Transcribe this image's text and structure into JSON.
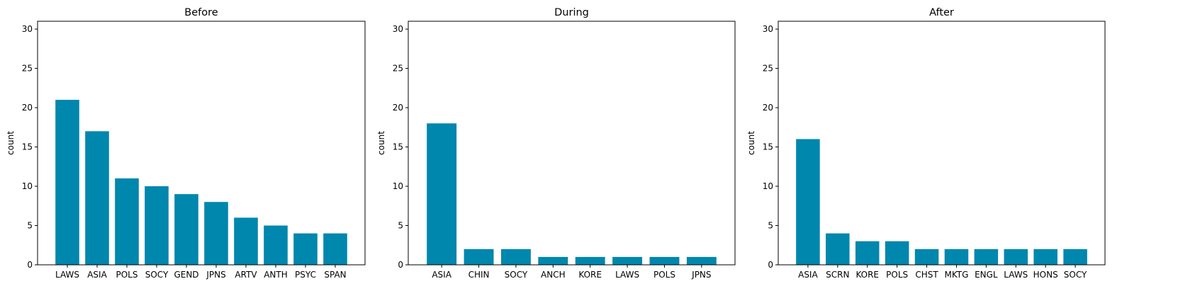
{
  "chart_data": [
    {
      "type": "bar",
      "title": "Before",
      "xlabel": "",
      "ylabel": "count",
      "categories": [
        "LAWS",
        "ASIA",
        "POLS",
        "SOCY",
        "GEND",
        "JPNS",
        "ARTV",
        "ANTH",
        "PSYC",
        "SPAN"
      ],
      "values": [
        21,
        17,
        11,
        10,
        9,
        8,
        6,
        5,
        4,
        4
      ],
      "ylim": [
        0,
        31
      ],
      "yticks": [
        0,
        5,
        10,
        15,
        20,
        25,
        30
      ],
      "grid": false,
      "bar_color": "#0087ad"
    },
    {
      "type": "bar",
      "title": "During",
      "xlabel": "",
      "ylabel": "count",
      "categories": [
        "ASIA",
        "CHIN",
        "SOCY",
        "ANCH",
        "KORE",
        "LAWS",
        "POLS",
        "JPNS"
      ],
      "values": [
        18,
        2,
        2,
        1,
        1,
        1,
        1,
        1
      ],
      "ylim": [
        0,
        31
      ],
      "yticks": [
        0,
        5,
        10,
        15,
        20,
        25,
        30
      ],
      "grid": false,
      "bar_color": "#0087ad"
    },
    {
      "type": "bar",
      "title": "After",
      "xlabel": "",
      "ylabel": "count",
      "categories": [
        "ASIA",
        "SCRN",
        "KORE",
        "POLS",
        "CHST",
        "MKTG",
        "ENGL",
        "LAWS",
        "HONS",
        "SOCY"
      ],
      "values": [
        16,
        4,
        3,
        3,
        2,
        2,
        2,
        2,
        2,
        2
      ],
      "ylim": [
        0,
        31
      ],
      "yticks": [
        0,
        5,
        10,
        15,
        20,
        25,
        30
      ],
      "grid": false,
      "bar_color": "#0087ad"
    }
  ]
}
